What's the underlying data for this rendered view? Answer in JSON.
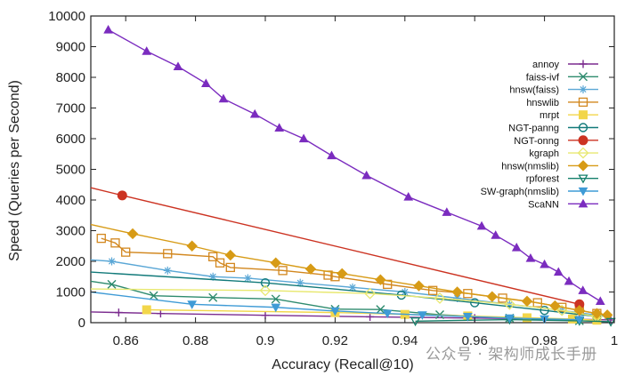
{
  "chart_data": {
    "type": "line",
    "xlabel": "Accuracy (Recall@10)",
    "ylabel": "Speed (Queries per Second)",
    "xlim": [
      0.85,
      1.0
    ],
    "ylim": [
      0,
      10000
    ],
    "xticks": [
      "0.86",
      "0.88",
      "0.9",
      "0.92",
      "0.94",
      "0.96",
      "0.98",
      "1"
    ],
    "xtick_values": [
      0.86,
      0.88,
      0.9,
      0.92,
      0.94,
      0.96,
      0.98,
      1.0
    ],
    "yticks": [
      "0",
      "1000",
      "2000",
      "3000",
      "4000",
      "5000",
      "6000",
      "7000",
      "8000",
      "9000",
      "10000"
    ],
    "ytick_values": [
      0,
      1000,
      2000,
      3000,
      4000,
      5000,
      6000,
      7000,
      8000,
      9000,
      10000
    ],
    "grid": false,
    "legend_position": "top-right",
    "series": [
      {
        "name": "annoy",
        "color": "#7b2c8f",
        "marker": "plus",
        "x": [
          0.85,
          0.858,
          0.87,
          0.9,
          0.93,
          0.96,
          0.99,
          0.999
        ],
        "y": [
          350,
          330,
          300,
          240,
          190,
          150,
          110,
          90
        ]
      },
      {
        "name": "faiss-ivf",
        "color": "#2e8b6e",
        "marker": "x",
        "x": [
          0.85,
          0.856,
          0.868,
          0.885,
          0.903,
          0.92,
          0.933,
          0.95,
          0.97,
          0.99
        ],
        "y": [
          1350,
          1250,
          880,
          820,
          770,
          440,
          430,
          260,
          150,
          60
        ]
      },
      {
        "name": "hnsw(faiss)",
        "color": "#5aa7d6",
        "marker": "star",
        "x": [
          0.85,
          0.856,
          0.872,
          0.885,
          0.895,
          0.91,
          0.925,
          0.94,
          0.955,
          0.97,
          0.985,
          0.998
        ],
        "y": [
          2050,
          2000,
          1700,
          1500,
          1450,
          1300,
          1150,
          1000,
          800,
          600,
          400,
          200
        ]
      },
      {
        "name": "hnswlib",
        "color": "#d2871e",
        "marker": "square",
        "x": [
          0.853,
          0.857,
          0.86,
          0.872,
          0.885,
          0.887,
          0.89,
          0.905,
          0.918,
          0.92,
          0.935,
          0.948,
          0.958,
          0.968,
          0.978,
          0.985,
          0.99,
          0.995
        ],
        "y": [
          2750,
          2600,
          2300,
          2250,
          2150,
          1950,
          1800,
          1700,
          1550,
          1500,
          1250,
          1050,
          950,
          800,
          650,
          500,
          400,
          300
        ]
      },
      {
        "name": "mrpt",
        "color": "#f2d64a",
        "marker": "filled-square",
        "x": [
          0.866,
          0.92,
          0.94,
          0.958,
          0.975,
          0.988,
          0.995
        ],
        "y": [
          420,
          330,
          270,
          220,
          160,
          120,
          80
        ]
      },
      {
        "name": "NGT-panng",
        "color": "#127a7a",
        "marker": "circle",
        "x": [
          0.85,
          0.9,
          0.939,
          0.96,
          0.98,
          0.995
        ],
        "y": [
          1650,
          1300,
          900,
          650,
          400,
          200
        ]
      },
      {
        "name": "NGT-onng",
        "color": "#cc3322",
        "marker": "filled-circle",
        "x": [
          0.85,
          0.859,
          0.99
        ],
        "y": [
          4400,
          4150,
          600
        ]
      },
      {
        "name": "kgraph",
        "color": "#e8e870",
        "marker": "diamond",
        "x": [
          0.85,
          0.9,
          0.93,
          0.95,
          0.97,
          0.985,
          0.995
        ],
        "y": [
          1100,
          1050,
          950,
          800,
          600,
          400,
          200
        ]
      },
      {
        "name": "hnsw(nmslib)",
        "color": "#d79b16",
        "marker": "filled-diamond",
        "x": [
          0.85,
          0.862,
          0.879,
          0.89,
          0.903,
          0.913,
          0.922,
          0.933,
          0.944,
          0.955,
          0.965,
          0.975,
          0.983,
          0.99,
          0.995,
          0.998
        ],
        "y": [
          3200,
          2900,
          2500,
          2200,
          1950,
          1750,
          1600,
          1400,
          1200,
          1000,
          850,
          700,
          550,
          400,
          300,
          250
        ]
      },
      {
        "name": "rpforest",
        "color": "#15806b",
        "marker": "triangle-down",
        "x": [
          0.943,
          0.97,
          0.99,
          0.999
        ],
        "y": [
          50,
          100,
          60,
          30
        ]
      },
      {
        "name": "SW-graph(nmslib)",
        "color": "#3f9bd6",
        "marker": "filled-triangle-down",
        "x": [
          0.85,
          0.879,
          0.903,
          0.92,
          0.935,
          0.945,
          0.958,
          0.97,
          0.98,
          0.99
        ],
        "y": [
          1000,
          600,
          500,
          380,
          300,
          250,
          200,
          150,
          120,
          100
        ]
      },
      {
        "name": "ScaNN",
        "color": "#7b2cbf",
        "marker": "filled-triangle",
        "x": [
          0.855,
          0.866,
          0.875,
          0.883,
          0.888,
          0.897,
          0.904,
          0.911,
          0.919,
          0.929,
          0.941,
          0.952,
          0.962,
          0.966,
          0.972,
          0.976,
          0.98,
          0.984,
          0.987,
          0.991,
          0.996
        ],
        "y": [
          9550,
          8850,
          8350,
          7800,
          7300,
          6800,
          6350,
          6000,
          5450,
          4800,
          4100,
          3600,
          3150,
          2850,
          2450,
          2100,
          1900,
          1650,
          1350,
          1050,
          700
        ]
      }
    ]
  },
  "watermark": "公众号 · 架构师成长手册"
}
